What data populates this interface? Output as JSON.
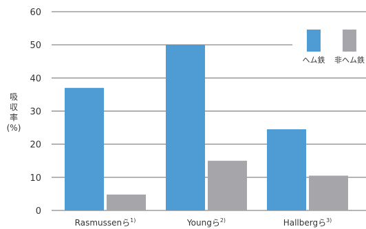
{
  "chart_data": {
    "type": "bar",
    "categories": [
      "Rasmussenら",
      "Youngら",
      "Hallbergら"
    ],
    "category_refs": [
      "1)",
      "2)",
      "3)"
    ],
    "series": [
      {
        "name": "ヘム鉄",
        "values": [
          37,
          50,
          24.5
        ],
        "color": "#4f9bd3"
      },
      {
        "name": "非ヘム鉄",
        "values": [
          4.8,
          15,
          10.5
        ],
        "color": "#a6a6aa"
      }
    ],
    "ylabel": [
      "吸",
      "収",
      "率",
      "(%)"
    ],
    "ylim": [
      0,
      60
    ],
    "yticks": [
      0,
      10,
      20,
      30,
      40,
      50,
      60
    ],
    "grid": true,
    "legend": "top-right"
  }
}
